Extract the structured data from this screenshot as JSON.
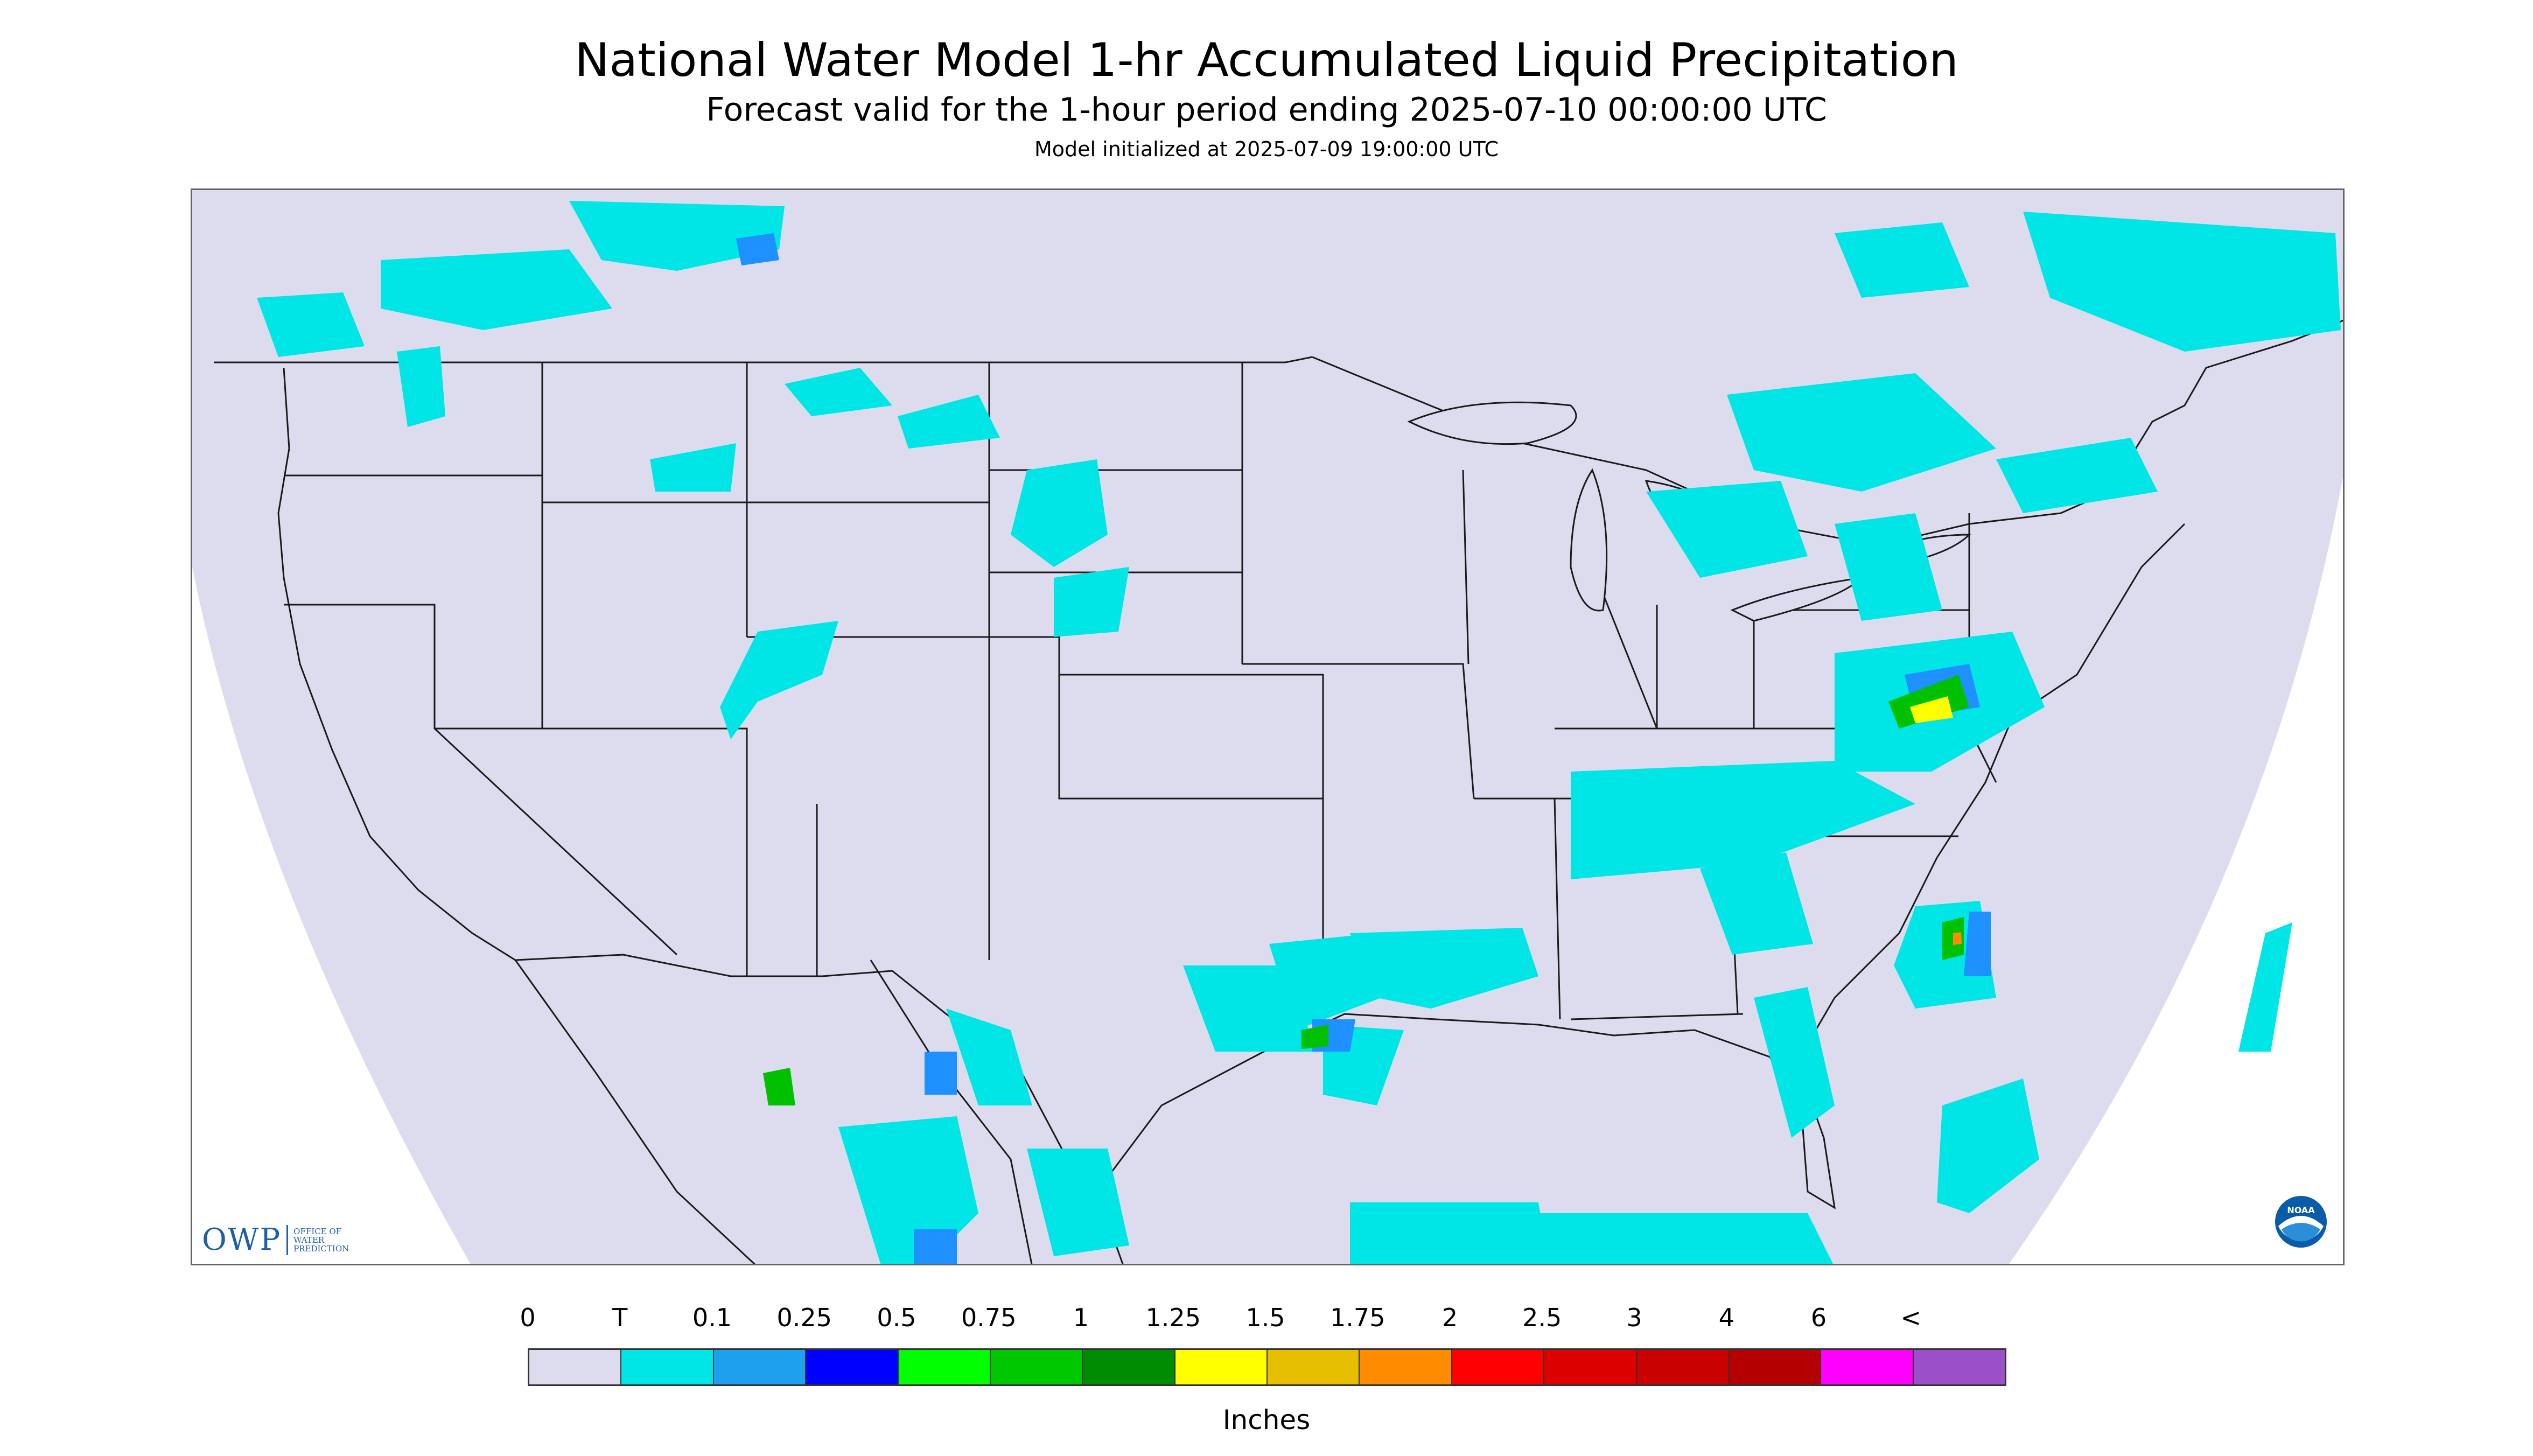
{
  "header": {
    "title": "National Water Model 1-hr Accumulated Liquid Precipitation",
    "subtitle": "Forecast valid for the 1-hour period ending 2025-07-10 00:00:00 UTC",
    "init": "Model initialized at 2025-07-09 19:00:00 UTC"
  },
  "map": {
    "background_color": "#dcdcee",
    "outside_color": "#ffffff",
    "boundary_color": "#000000",
    "precip_colors": {
      "trace": "#00e5e5",
      "light": "#1e90ff",
      "moderate": "#0000e6",
      "green": "#00c000",
      "yellow": "#ffff00",
      "orange": "#ff8c00"
    }
  },
  "logos": {
    "owp": {
      "mark": "OWP",
      "lines": [
        "OFFICE OF",
        "WATER",
        "PREDICTION"
      ]
    },
    "noaa": {
      "text": "NOAA",
      "icon": "noaa-logo-icon"
    }
  },
  "legend": {
    "labels": [
      "0",
      "T",
      "0.1",
      "0.25",
      "0.5",
      "0.75",
      "1",
      "1.25",
      "1.5",
      "1.75",
      "2",
      "2.5",
      "3",
      "4",
      "6",
      "<"
    ],
    "colors": [
      "#dcdcee",
      "#00e5e5",
      "#1ea0ee",
      "#0000ff",
      "#00ff00",
      "#00c800",
      "#008c00",
      "#ffff00",
      "#e6c000",
      "#ff8c00",
      "#ff0000",
      "#dc0000",
      "#c80000",
      "#b40000",
      "#ff00ff",
      "#9b4fc8"
    ],
    "units": "Inches"
  }
}
